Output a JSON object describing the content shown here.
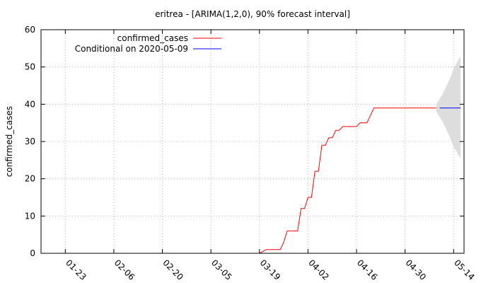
{
  "chart_data": {
    "type": "line",
    "title": "eritrea -  [ARIMA(1,2,0), 90% forecast interval]",
    "xlabel": "",
    "ylabel": "confirmed_cases",
    "xlim": [
      "2020-01-16",
      "2020-05-17"
    ],
    "ylim": [
      0,
      60
    ],
    "y_ticks": [
      0,
      10,
      20,
      30,
      40,
      50,
      60
    ],
    "x_ticks": [
      "2020-01-23",
      "2020-02-06",
      "2020-02-20",
      "2020-03-05",
      "2020-03-19",
      "2020-04-02",
      "2020-04-16",
      "2020-04-30",
      "2020-05-14"
    ],
    "x_tick_labels": [
      "01-23",
      "02-06",
      "02-20",
      "03-05",
      "03-19",
      "04-02",
      "04-16",
      "04-30",
      "05-14"
    ],
    "legend_position": "top-left",
    "grid": "dotted",
    "series": [
      {
        "name": "confirmed_cases",
        "color": "#ff0000",
        "points": [
          [
            "2020-03-19",
            0
          ],
          [
            "2020-03-21",
            1
          ],
          [
            "2020-03-25",
            1
          ],
          [
            "2020-03-26",
            3
          ],
          [
            "2020-03-27",
            6
          ],
          [
            "2020-03-30",
            6
          ],
          [
            "2020-03-31",
            12
          ],
          [
            "2020-04-01",
            12
          ],
          [
            "2020-04-02",
            15
          ],
          [
            "2020-04-03",
            15
          ],
          [
            "2020-04-04",
            22
          ],
          [
            "2020-04-05",
            22
          ],
          [
            "2020-04-06",
            29
          ],
          [
            "2020-04-07",
            29
          ],
          [
            "2020-04-08",
            31
          ],
          [
            "2020-04-09",
            31
          ],
          [
            "2020-04-10",
            33
          ],
          [
            "2020-04-11",
            33
          ],
          [
            "2020-04-12",
            34
          ],
          [
            "2020-04-16",
            34
          ],
          [
            "2020-04-17",
            35
          ],
          [
            "2020-04-19",
            35
          ],
          [
            "2020-04-21",
            39
          ],
          [
            "2020-05-09",
            39
          ]
        ]
      },
      {
        "name": "Conditional on 2020-05-09",
        "color": "#0000ff",
        "points": [
          [
            "2020-05-10",
            39
          ],
          [
            "2020-05-16",
            39
          ]
        ]
      }
    ],
    "forecast_interval": {
      "color": "#dddddd",
      "upper": [
        [
          "2020-05-09",
          40
        ],
        [
          "2020-05-10",
          41.5
        ],
        [
          "2020-05-11",
          43
        ],
        [
          "2020-05-12",
          45
        ],
        [
          "2020-05-13",
          47
        ],
        [
          "2020-05-14",
          49.5
        ],
        [
          "2020-05-16",
          53
        ]
      ],
      "lower": [
        [
          "2020-05-09",
          38
        ],
        [
          "2020-05-10",
          36.5
        ],
        [
          "2020-05-11",
          35
        ],
        [
          "2020-05-12",
          33
        ],
        [
          "2020-05-13",
          31
        ],
        [
          "2020-05-14",
          28.5
        ],
        [
          "2020-05-16",
          25.5
        ]
      ]
    }
  }
}
